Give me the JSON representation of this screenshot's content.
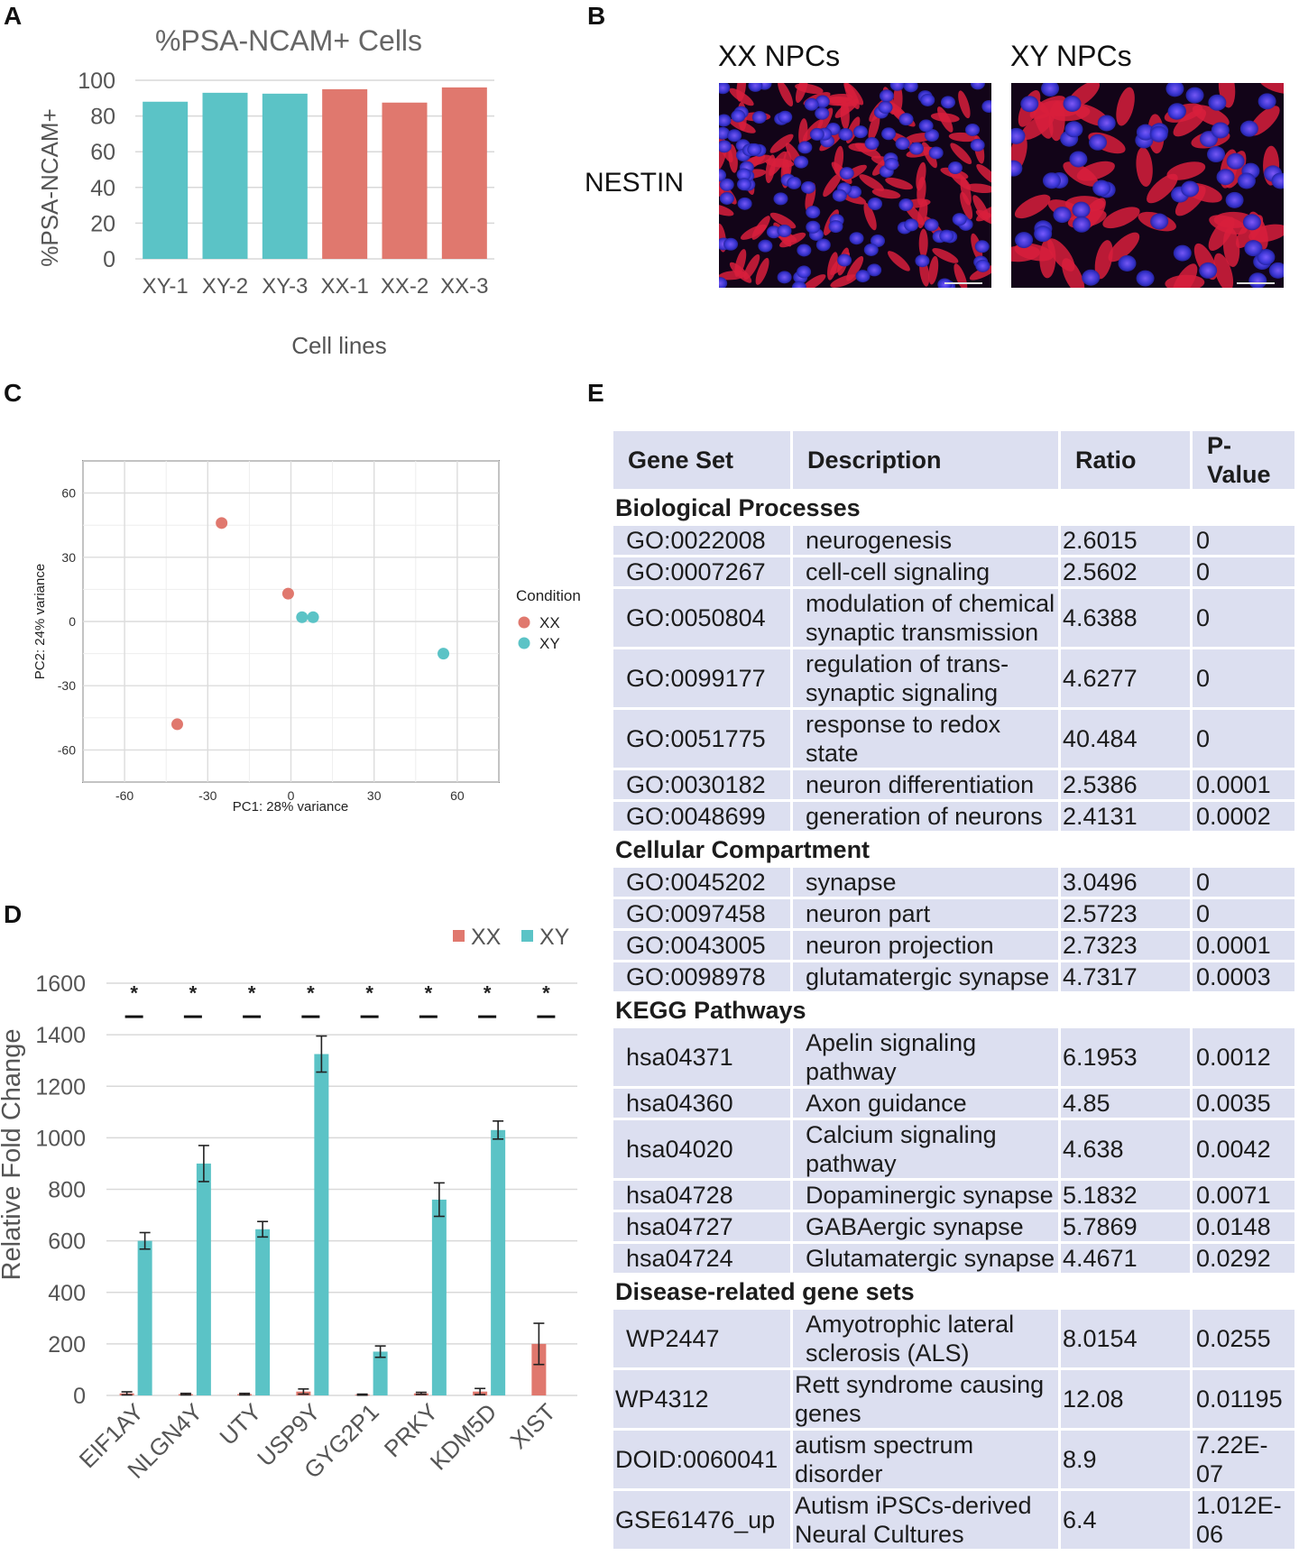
{
  "panels": {
    "a": "A",
    "b": "B",
    "c": "C",
    "d": "D",
    "e": "E"
  },
  "panel_a": {
    "chart_data": {
      "type": "bar",
      "title": "%PSA-NCAM+ Cells",
      "xlabel": "Cell lines",
      "ylabel": "%PSA-NCAM+",
      "ylim": [
        0,
        100
      ],
      "yticks": [
        "0",
        "20",
        "40",
        "60",
        "80",
        "100"
      ],
      "categories": [
        "XY-1",
        "XY-2",
        "XY-3",
        "XX-1",
        "XX-2",
        "XX-3"
      ],
      "values": [
        88,
        93,
        92.5,
        95,
        87.5,
        96
      ],
      "colors": [
        "#5bc3c6",
        "#5bc3c6",
        "#5bc3c6",
        "#e0786e",
        "#e0786e",
        "#e0786e"
      ],
      "grid": true
    }
  },
  "panel_b": {
    "col_labels": [
      "XX NPCs",
      "XY NPCs"
    ],
    "row_label": "NESTIN"
  },
  "panel_c": {
    "chart_data": {
      "type": "scatter",
      "xlabel": "PC1: 28% variance",
      "ylabel": "PC2: 24% variance",
      "xlim": [
        -75,
        75
      ],
      "ylim": [
        -75,
        75
      ],
      "xticks": [
        -60,
        -30,
        0,
        30,
        60
      ],
      "yticks": [
        60,
        30,
        0,
        -30,
        -60
      ],
      "legend_title": "Condition",
      "legend_position": "right",
      "grid": true,
      "series": [
        {
          "name": "XX",
          "color": "#e0786e",
          "x": [
            -25,
            -1,
            -41
          ],
          "y": [
            46,
            13,
            -48
          ]
        },
        {
          "name": "XY",
          "color": "#5bc3c6",
          "x": [
            4,
            8,
            55
          ],
          "y": [
            2,
            2,
            -15
          ]
        }
      ]
    }
  },
  "panel_d": {
    "chart_data": {
      "type": "bar",
      "ylabel": "Relative Fold Change",
      "ylim": [
        0,
        1600
      ],
      "yticks": [
        "0",
        "200",
        "400",
        "600",
        "800",
        "1000",
        "1200",
        "1400",
        "1600"
      ],
      "categories": [
        "EIF1AY",
        "NLGN4Y",
        "UTY",
        "USP9Y",
        "GYG2P1",
        "PRKY",
        "KDM5D",
        "XIST"
      ],
      "series": [
        {
          "name": "XX",
          "color": "#e0786e",
          "values": [
            8,
            5,
            5,
            15,
            3,
            8,
            15,
            200
          ],
          "errors": [
            6,
            3,
            3,
            10,
            2,
            4,
            12,
            80
          ]
        },
        {
          "name": "XY",
          "color": "#5bc3c6",
          "values": [
            600,
            900,
            645,
            1325,
            170,
            760,
            1030,
            0
          ],
          "errors": [
            32,
            70,
            30,
            70,
            22,
            65,
            35,
            0
          ]
        }
      ],
      "significance": [
        "*",
        "*",
        "*",
        "*",
        "*",
        "*",
        "*",
        "*"
      ],
      "legend_position": "top-right",
      "grid": true
    }
  },
  "panel_e": {
    "headers": {
      "gene_set": "Gene Set",
      "description": "Description",
      "ratio": "Ratio",
      "pvalue": "P-Value"
    },
    "sections": [
      {
        "title": "Biological Processes",
        "rows": [
          {
            "id": "GO:0022008",
            "desc": "neurogenesis",
            "ratio": "2.6015",
            "p": "0"
          },
          {
            "id": "GO:0007267",
            "desc": "cell-cell signaling",
            "ratio": "2.5602",
            "p": "0"
          },
          {
            "id": "GO:0050804",
            "desc": "modulation of chemical synaptic transmission",
            "ratio": "4.6388",
            "p": "0"
          },
          {
            "id": "GO:0099177",
            "desc": "regulation of trans-synaptic signaling",
            "ratio": "4.6277",
            "p": "0"
          },
          {
            "id": "GO:0051775",
            "desc": "response to redox state",
            "ratio": "40.484",
            "p": "0"
          },
          {
            "id": "GO:0030182",
            "desc": "neuron differentiation",
            "ratio": "2.5386",
            "p": "0.0001"
          },
          {
            "id": "GO:0048699",
            "desc": "generation of neurons",
            "ratio": "2.4131",
            "p": "0.0002"
          }
        ]
      },
      {
        "title": "Cellular Compartment",
        "rows": [
          {
            "id": "GO:0045202",
            "desc": "synapse",
            "ratio": "3.0496",
            "p": "0"
          },
          {
            "id": "GO:0097458",
            "desc": "neuron part",
            "ratio": "2.5723",
            "p": "0"
          },
          {
            "id": "GO:0043005",
            "desc": "neuron projection",
            "ratio": "2.7323",
            "p": "0.0001"
          },
          {
            "id": "GO:0098978",
            "desc": "glutamatergic synapse",
            "ratio": "4.7317",
            "p": "0.0003"
          }
        ]
      },
      {
        "title": "KEGG Pathways",
        "rows": [
          {
            "id": "hsa04371",
            "desc": "Apelin signaling pathway",
            "ratio": "6.1953",
            "p": "0.0012"
          },
          {
            "id": "hsa04360",
            "desc": "Axon guidance",
            "ratio": "4.85",
            "p": "0.0035"
          },
          {
            "id": "hsa04020",
            "desc": "Calcium signaling pathway",
            "ratio": "4.638",
            "p": "0.0042"
          },
          {
            "id": "hsa04728",
            "desc": "Dopaminergic synapse",
            "ratio": "5.1832",
            "p": "0.0071"
          },
          {
            "id": "hsa04727",
            "desc": "GABAergic synapse",
            "ratio": "5.7869",
            "p": "0.0148"
          },
          {
            "id": "hsa04724",
            "desc": "Glutamatergic synapse",
            "ratio": "4.4671",
            "p": "0.0292"
          }
        ]
      },
      {
        "title": "Disease-related gene sets",
        "rows": [
          {
            "id": "WP2447",
            "desc": "Amyotrophic lateral sclerosis (ALS)",
            "ratio": "8.0154",
            "p": "0.0255"
          },
          {
            "id": "WP4312",
            "desc": "Rett syndrome causing genes",
            "ratio": "12.08",
            "p": "0.01195"
          },
          {
            "id": "DOID:0060041",
            "desc": "autism spectrum disorder",
            "ratio": "8.9",
            "p": "7.22E-07"
          },
          {
            "id": "GSE61476_up",
            "desc": "Autism iPSCs-derived Neural Cultures",
            "ratio": "6.4",
            "p": "1.012E-06"
          }
        ]
      }
    ]
  }
}
